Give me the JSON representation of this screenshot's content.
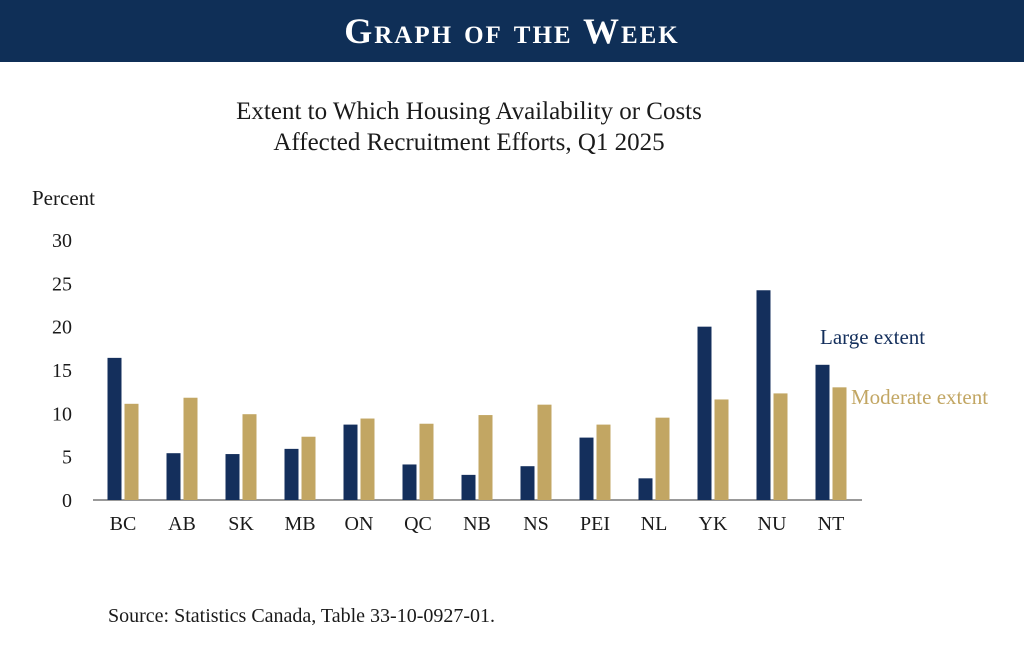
{
  "header": {
    "banner": "Graph of the Week"
  },
  "footer": {
    "source": "Source: Statistics Canada, Table 33-10-0927-01."
  },
  "colors": {
    "banner": "#0f2f57",
    "large": "#142f5c",
    "moderate": "#c2a663"
  },
  "chart_data": {
    "type": "bar",
    "title_lines": [
      "Extent to Which Housing Availability or Costs",
      "Affected Recruitment Efforts, Q1 2025"
    ],
    "ylabel": "Percent",
    "xlabel": "",
    "ylim": [
      0,
      30
    ],
    "yticks": [
      0,
      5,
      10,
      15,
      20,
      25,
      30
    ],
    "categories": [
      "BC",
      "AB",
      "SK",
      "MB",
      "ON",
      "QC",
      "NB",
      "NS",
      "PEI",
      "NL",
      "YK",
      "NU",
      "NT"
    ],
    "series": [
      {
        "name": "Large extent",
        "values": [
          16.4,
          5.4,
          5.3,
          5.9,
          8.7,
          4.1,
          2.9,
          3.9,
          7.2,
          2.5,
          20.0,
          24.2,
          15.6
        ]
      },
      {
        "name": "Moderate extent",
        "values": [
          11.1,
          11.8,
          9.9,
          7.3,
          9.4,
          8.8,
          9.8,
          11.0,
          8.7,
          9.5,
          11.6,
          12.3,
          13.0
        ]
      }
    ],
    "grid": false,
    "legend": "right, inline labels"
  }
}
